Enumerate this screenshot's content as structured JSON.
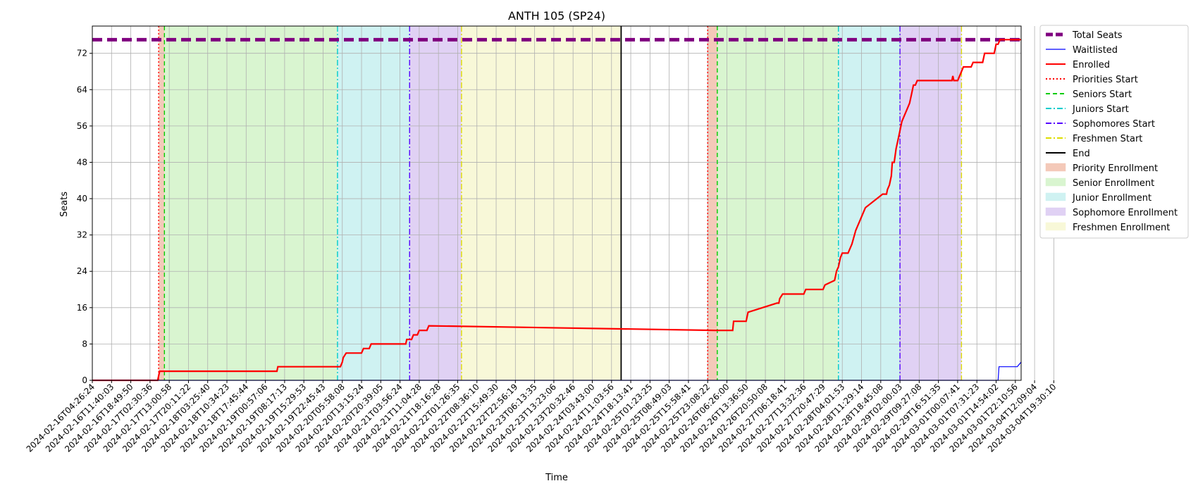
{
  "chart_data": {
    "type": "line",
    "title": "ANTH 105 (SP24)",
    "xlabel": "Time",
    "ylabel": "Seats",
    "grid": true,
    "legend_position": "outside-top-right",
    "ylim": [
      0,
      78
    ],
    "yticks": [
      0,
      8,
      16,
      24,
      32,
      40,
      48,
      56,
      64,
      72
    ],
    "x_unit": "tick index (x tick labels shown below)",
    "xlim": [
      0,
      48.3
    ],
    "xticks": [
      "2024-02-16T04:26:24",
      "2024-02-16T11:40:03",
      "2024-02-16T18:49:50",
      "2024-02-17T02:30:36",
      "2024-02-17T13:00:58",
      "2024-02-17T20:11:22",
      "2024-02-18T03:25:40",
      "2024-02-18T10:34:23",
      "2024-02-18T17:45:44",
      "2024-02-19T00:57:06",
      "2024-02-19T08:17:13",
      "2024-02-19T15:29:53",
      "2024-02-19T22:45:43",
      "2024-02-20T05:58:08",
      "2024-02-20T13:15:24",
      "2024-02-20T20:39:05",
      "2024-02-21T03:56:24",
      "2024-02-21T11:04:28",
      "2024-02-21T18:16:28",
      "2024-02-22T01:26:35",
      "2024-02-22T08:36:10",
      "2024-02-22T15:49:30",
      "2024-02-22T22:56:19",
      "2024-02-23T06:13:35",
      "2024-02-23T13:23:06",
      "2024-02-23T20:32:46",
      "2024-02-24T03:43:00",
      "2024-02-24T11:03:56",
      "2024-02-24T18:13:41",
      "2024-02-25T01:23:25",
      "2024-02-25T08:49:03",
      "2024-02-25T15:58:41",
      "2024-02-25T23:08:22",
      "2024-02-26T06:26:00",
      "2024-02-26T13:36:50",
      "2024-02-26T20:50:08",
      "2024-02-27T06:18:41",
      "2024-02-27T13:32:36",
      "2024-02-27T20:47:29",
      "2024-02-28T04:01:53",
      "2024-02-28T11:29:14",
      "2024-02-28T18:45:08",
      "2024-02-29T02:00:03",
      "2024-02-29T09:27:08",
      "2024-02-29T16:51:35",
      "2024-03-01T00:07:41",
      "2024-03-01T07:31:23",
      "2024-03-01T14:54:02",
      "2024-03-01T22:10:56",
      "2024-03-04T12:09:04",
      "2024-03-04T19:30:10"
    ],
    "total_seats": 75,
    "series": [
      {
        "name": "Enrolled",
        "color": "#ff0000",
        "x": [
          0,
          3.4,
          3.5,
          9.6,
          9.65,
          9.7,
          12.9,
          13.0,
          13.05,
          13.2,
          14.0,
          14.1,
          14.4,
          14.5,
          16.3,
          16.35,
          16.6,
          16.7,
          16.9,
          17.0,
          17.4,
          17.5,
          32.4,
          32.5,
          33.3,
          33.35,
          33.6,
          33.7,
          34.0,
          34.1,
          35.6,
          35.7,
          35.75,
          35.9,
          36.0,
          37.0,
          37.1,
          38.0,
          38.1,
          38.6,
          38.65,
          38.7,
          38.8,
          38.9,
          39.0,
          39.3,
          39.5,
          39.7,
          39.9,
          40.2,
          41.1,
          41.2,
          41.3,
          41.35,
          41.45,
          41.55,
          41.6,
          41.7,
          41.8,
          41.9,
          42.0,
          42.1,
          42.4,
          42.5,
          42.6,
          42.7,
          42.8,
          42.9,
          43.0,
          43.2,
          44.7,
          44.75,
          44.8,
          44.9,
          45.0,
          45.1,
          45.2,
          45.3,
          45.7,
          45.8,
          46.3,
          46.4,
          46.9,
          47.0,
          47.1,
          47.2,
          47.4,
          47.5,
          48.3
        ],
        "y": [
          0,
          0,
          2,
          2,
          3,
          3,
          3,
          4,
          5,
          6,
          6,
          7,
          7,
          8,
          8,
          9,
          9,
          10,
          10,
          11,
          11,
          12,
          11,
          11,
          11,
          13,
          13,
          13,
          13,
          15,
          17,
          17,
          18,
          19,
          19,
          19,
          20,
          20,
          21,
          22,
          23,
          24,
          25,
          27,
          28,
          28,
          30,
          33,
          35,
          38,
          41,
          41,
          41,
          42,
          43,
          45,
          48,
          48,
          51,
          53,
          55,
          57,
          60,
          61,
          63,
          65,
          65,
          66,
          66,
          66,
          66,
          67,
          66,
          66,
          66,
          67,
          68,
          69,
          69,
          70,
          70,
          72,
          72,
          74,
          74,
          75,
          75,
          75,
          75
        ]
      },
      {
        "name": "Waitlisted",
        "color": "#0000ff",
        "x": [
          0,
          47.1,
          47.15,
          48.0,
          48.1,
          48.3
        ],
        "y": [
          0,
          0,
          3,
          3,
          3,
          4
        ]
      }
    ],
    "markers": [
      {
        "name": "Priorities Start",
        "x": 3.45,
        "color": "#ff0000",
        "style": "dotted"
      },
      {
        "name": "Seniors Start",
        "x": 3.75,
        "color": "#00cc00",
        "style": "dashed"
      },
      {
        "name": "Juniors Start",
        "x": 12.75,
        "color": "#00cccc",
        "style": "dashdot"
      },
      {
        "name": "Sophomores Start",
        "x": 16.5,
        "color": "#5500ff",
        "style": "dashdot"
      },
      {
        "name": "Freshmen Start",
        "x": 19.2,
        "color": "#dddd00",
        "style": "dashdot"
      },
      {
        "name": "End",
        "x": 27.5,
        "color": "#000000",
        "style": "solid"
      },
      {
        "name": "Priorities Start",
        "x": 32.0,
        "color": "#ff0000",
        "style": "dotted"
      },
      {
        "name": "Seniors Start",
        "x": 32.5,
        "color": "#00cc00",
        "style": "dashed"
      },
      {
        "name": "Juniors Start",
        "x": 38.8,
        "color": "#00cccc",
        "style": "dashdot"
      },
      {
        "name": "Sophomores Start",
        "x": 42.0,
        "color": "#5500ff",
        "style": "dashdot"
      },
      {
        "name": "Freshmen Start",
        "x": 45.2,
        "color": "#dddd00",
        "style": "dashdot"
      }
    ],
    "bands": [
      {
        "name": "Priority Enrollment",
        "x0": 3.45,
        "x1": 3.75,
        "color": "#f4c9b9"
      },
      {
        "name": "Senior Enrollment",
        "x0": 3.75,
        "x1": 12.75,
        "color": "#d9f5d0"
      },
      {
        "name": "Junior Enrollment",
        "x0": 12.75,
        "x1": 16.5,
        "color": "#cff2f2"
      },
      {
        "name": "Sophomore Enrollment",
        "x0": 16.5,
        "x1": 19.2,
        "color": "#e0d1f4"
      },
      {
        "name": "Freshmen Enrollment",
        "x0": 19.2,
        "x1": 27.5,
        "color": "#f8f8d8"
      },
      {
        "name": "Priority Enrollment",
        "x0": 32.0,
        "x1": 32.5,
        "color": "#f4c9b9"
      },
      {
        "name": "Senior Enrollment",
        "x0": 32.5,
        "x1": 38.8,
        "color": "#d9f5d0"
      },
      {
        "name": "Junior Enrollment",
        "x0": 38.8,
        "x1": 42.0,
        "color": "#cff2f2"
      },
      {
        "name": "Sophomore Enrollment",
        "x0": 42.0,
        "x1": 45.2,
        "color": "#e0d1f4"
      }
    ],
    "legend": [
      {
        "label": "Total Seats",
        "kind": "line",
        "color": "#800080",
        "style": "dashed-thick"
      },
      {
        "label": "Waitlisted",
        "kind": "line",
        "color": "#0000ff",
        "style": "solid-thin"
      },
      {
        "label": "Enrolled",
        "kind": "line",
        "color": "#ff0000",
        "style": "solid"
      },
      {
        "label": "Priorities Start",
        "kind": "line",
        "color": "#ff0000",
        "style": "dotted"
      },
      {
        "label": "Seniors Start",
        "kind": "line",
        "color": "#00cc00",
        "style": "dashed"
      },
      {
        "label": "Juniors Start",
        "kind": "line",
        "color": "#00cccc",
        "style": "dashdot"
      },
      {
        "label": "Sophomores Start",
        "kind": "line",
        "color": "#5500ff",
        "style": "dashdot"
      },
      {
        "label": "Freshmen Start",
        "kind": "line",
        "color": "#dddd00",
        "style": "dashdot"
      },
      {
        "label": "End",
        "kind": "line",
        "color": "#000000",
        "style": "solid"
      },
      {
        "label": "Priority Enrollment",
        "kind": "patch",
        "color": "#f4c9b9"
      },
      {
        "label": "Senior Enrollment",
        "kind": "patch",
        "color": "#d9f5d0"
      },
      {
        "label": "Junior Enrollment",
        "kind": "patch",
        "color": "#cff2f2"
      },
      {
        "label": "Sophomore Enrollment",
        "kind": "patch",
        "color": "#e0d1f4"
      },
      {
        "label": "Freshmen Enrollment",
        "kind": "patch",
        "color": "#f8f8d8"
      }
    ]
  }
}
